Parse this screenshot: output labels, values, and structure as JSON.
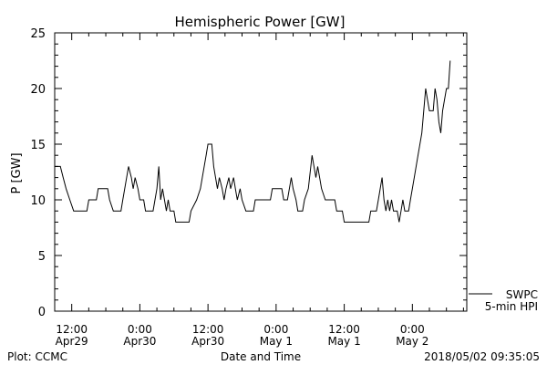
{
  "chart_data": {
    "type": "line",
    "title": "Hemispheric Power [GW]",
    "ylabel": "P [GW]",
    "xlabel": "Date and Time",
    "ylim": [
      0,
      25
    ],
    "y_ticks": [
      0,
      5,
      10,
      15,
      20,
      25
    ],
    "xlim": [
      "2018-04-29T09:00",
      "2018-05-02T09:35"
    ],
    "x_ticks": [
      {
        "time": "2018-04-29T12:00",
        "line1": "12:00",
        "line2": "Apr29"
      },
      {
        "time": "2018-04-30T00:00",
        "line1": "0:00",
        "line2": "Apr30"
      },
      {
        "time": "2018-04-30T12:00",
        "line1": "12:00",
        "line2": "Apr30"
      },
      {
        "time": "2018-05-01T00:00",
        "line1": "0:00",
        "line2": "May 1"
      },
      {
        "time": "2018-05-01T12:00",
        "line1": "12:00",
        "line2": "May 1"
      },
      {
        "time": "2018-05-02T00:00",
        "line1": "0:00",
        "line2": "May 2"
      }
    ],
    "series": [
      {
        "name": "SWPC",
        "color": "#000000",
        "points": [
          [
            "2018-04-29T09:00",
            13
          ],
          [
            "2018-04-29T10:00",
            13
          ],
          [
            "2018-04-29T10:30",
            12
          ],
          [
            "2018-04-29T11:00",
            11
          ],
          [
            "2018-04-29T11:40",
            10
          ],
          [
            "2018-04-29T12:20",
            9
          ],
          [
            "2018-04-29T14:40",
            9
          ],
          [
            "2018-04-29T15:00",
            10
          ],
          [
            "2018-04-29T16:20",
            10
          ],
          [
            "2018-04-29T16:40",
            11
          ],
          [
            "2018-04-29T18:20",
            11
          ],
          [
            "2018-04-29T18:40",
            10
          ],
          [
            "2018-04-29T19:20",
            9
          ],
          [
            "2018-04-29T20:40",
            9
          ],
          [
            "2018-04-29T21:00",
            10
          ],
          [
            "2018-04-29T21:20",
            11
          ],
          [
            "2018-04-29T21:40",
            12
          ],
          [
            "2018-04-29T22:00",
            13
          ],
          [
            "2018-04-29T22:30",
            12
          ],
          [
            "2018-04-29T22:50",
            11
          ],
          [
            "2018-04-29T23:10",
            12
          ],
          [
            "2018-04-29T23:40",
            11
          ],
          [
            "2018-04-30T00:00",
            10
          ],
          [
            "2018-04-30T00:40",
            10
          ],
          [
            "2018-04-30T01:00",
            9
          ],
          [
            "2018-04-30T02:20",
            9
          ],
          [
            "2018-04-30T02:40",
            10
          ],
          [
            "2018-04-30T03:00",
            11
          ],
          [
            "2018-04-30T03:20",
            13
          ],
          [
            "2018-04-30T03:40",
            10
          ],
          [
            "2018-04-30T04:00",
            11
          ],
          [
            "2018-04-30T04:20",
            10
          ],
          [
            "2018-04-30T04:40",
            9
          ],
          [
            "2018-04-30T05:00",
            10
          ],
          [
            "2018-04-30T05:20",
            9
          ],
          [
            "2018-04-30T06:00",
            9
          ],
          [
            "2018-04-30T06:20",
            8
          ],
          [
            "2018-04-30T08:40",
            8
          ],
          [
            "2018-04-30T09:00",
            9
          ],
          [
            "2018-04-30T10:00",
            10
          ],
          [
            "2018-04-30T10:40",
            11
          ],
          [
            "2018-04-30T11:00",
            12
          ],
          [
            "2018-04-30T11:40",
            14
          ],
          [
            "2018-04-30T12:00",
            15
          ],
          [
            "2018-04-30T12:40",
            15
          ],
          [
            "2018-04-30T13:00",
            13
          ],
          [
            "2018-04-30T13:40",
            11
          ],
          [
            "2018-04-30T14:00",
            12
          ],
          [
            "2018-04-30T14:30",
            11
          ],
          [
            "2018-04-30T14:50",
            10
          ],
          [
            "2018-04-30T15:10",
            11
          ],
          [
            "2018-04-30T15:40",
            12
          ],
          [
            "2018-04-30T16:00",
            11
          ],
          [
            "2018-04-30T16:30",
            12
          ],
          [
            "2018-04-30T16:50",
            11
          ],
          [
            "2018-04-30T17:10",
            10
          ],
          [
            "2018-04-30T17:40",
            11
          ],
          [
            "2018-04-30T18:00",
            10
          ],
          [
            "2018-04-30T18:40",
            9
          ],
          [
            "2018-04-30T20:00",
            9
          ],
          [
            "2018-04-30T20:20",
            10
          ],
          [
            "2018-04-30T23:00",
            10
          ],
          [
            "2018-04-30T23:20",
            11
          ],
          [
            "2018-05-01T01:00",
            11
          ],
          [
            "2018-05-01T01:20",
            10
          ],
          [
            "2018-05-01T02:00",
            10
          ],
          [
            "2018-05-01T02:20",
            11
          ],
          [
            "2018-05-01T02:40",
            12
          ],
          [
            "2018-05-01T03:00",
            11
          ],
          [
            "2018-05-01T03:30",
            10
          ],
          [
            "2018-05-01T03:50",
            9
          ],
          [
            "2018-05-01T04:40",
            9
          ],
          [
            "2018-05-01T05:00",
            10
          ],
          [
            "2018-05-01T05:40",
            11
          ],
          [
            "2018-05-01T06:20",
            14
          ],
          [
            "2018-05-01T06:40",
            13
          ],
          [
            "2018-05-01T07:00",
            12
          ],
          [
            "2018-05-01T07:20",
            13
          ],
          [
            "2018-05-01T07:40",
            12
          ],
          [
            "2018-05-01T08:00",
            11
          ],
          [
            "2018-05-01T08:40",
            10
          ],
          [
            "2018-05-01T10:20",
            10
          ],
          [
            "2018-05-01T10:40",
            9
          ],
          [
            "2018-05-01T11:40",
            9
          ],
          [
            "2018-05-01T12:00",
            8
          ],
          [
            "2018-05-01T16:20",
            8
          ],
          [
            "2018-05-01T16:40",
            9
          ],
          [
            "2018-05-01T17:40",
            9
          ],
          [
            "2018-05-01T18:00",
            10
          ],
          [
            "2018-05-01T18:40",
            12
          ],
          [
            "2018-05-01T19:00",
            10
          ],
          [
            "2018-05-01T19:20",
            9
          ],
          [
            "2018-05-01T19:40",
            10
          ],
          [
            "2018-05-01T20:00",
            9
          ],
          [
            "2018-05-01T20:20",
            10
          ],
          [
            "2018-05-01T20:40",
            9
          ],
          [
            "2018-05-01T21:20",
            9
          ],
          [
            "2018-05-01T21:40",
            8
          ],
          [
            "2018-05-01T22:00",
            9
          ],
          [
            "2018-05-01T22:20",
            10
          ],
          [
            "2018-05-01T22:40",
            9
          ],
          [
            "2018-05-01T23:20",
            9
          ],
          [
            "2018-05-01T23:40",
            10
          ],
          [
            "2018-05-02T00:20",
            12
          ],
          [
            "2018-05-02T01:00",
            14
          ],
          [
            "2018-05-02T01:40",
            16
          ],
          [
            "2018-05-02T02:00",
            18
          ],
          [
            "2018-05-02T02:20",
            20
          ],
          [
            "2018-05-02T02:40",
            19
          ],
          [
            "2018-05-02T03:00",
            18
          ],
          [
            "2018-05-02T03:40",
            18
          ],
          [
            "2018-05-02T04:00",
            20
          ],
          [
            "2018-05-02T04:20",
            19
          ],
          [
            "2018-05-02T04:40",
            17
          ],
          [
            "2018-05-02T05:00",
            16
          ],
          [
            "2018-05-02T05:20",
            18
          ],
          [
            "2018-05-02T05:40",
            19
          ],
          [
            "2018-05-02T06:00",
            20
          ],
          [
            "2018-05-02T06:20",
            20
          ],
          [
            "2018-05-02T06:40",
            22.5
          ]
        ]
      }
    ],
    "legend": [
      {
        "label": "SWPC",
        "placement": "bottom-right"
      },
      {
        "label": "5-min HPI",
        "placement": "bottom-right"
      }
    ],
    "grid": false
  },
  "footer": {
    "left": "Plot: CCMC",
    "right": "2018/05/02 09:35:05"
  }
}
